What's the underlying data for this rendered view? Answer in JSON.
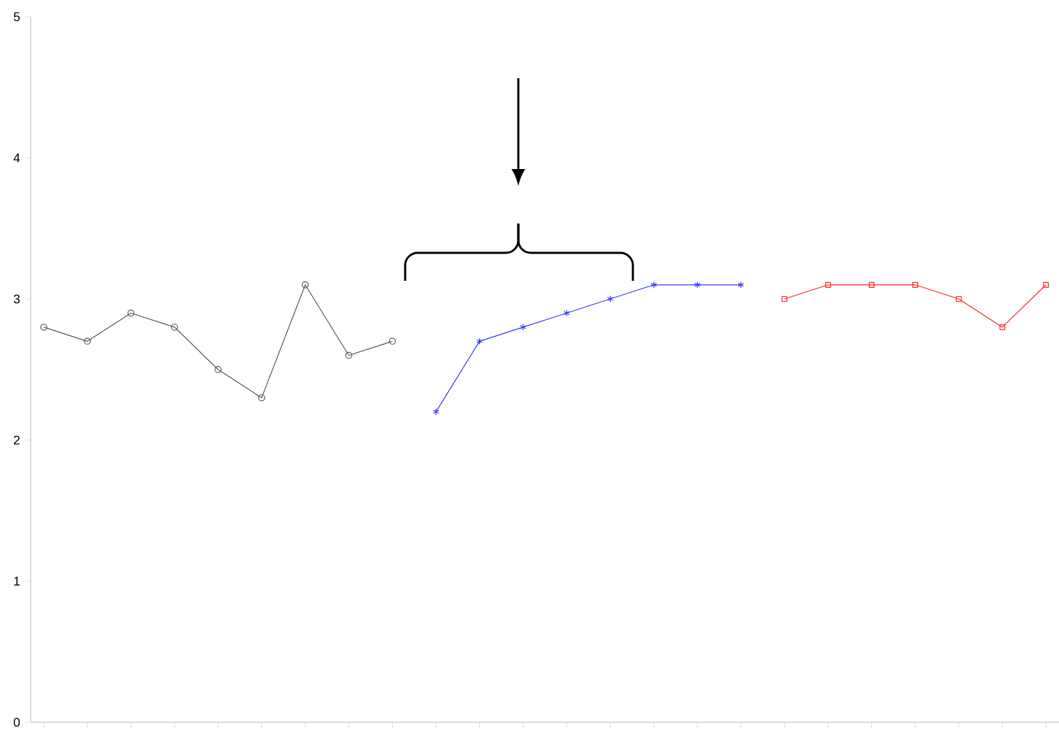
{
  "chart_data": {
    "type": "line",
    "categories": [
      null,
      null,
      null,
      null,
      null,
      null,
      null,
      null,
      null,
      null,
      null,
      null,
      null,
      null,
      null,
      null,
      null,
      null,
      null,
      null,
      null,
      null,
      null,
      null
    ],
    "series": [
      {
        "color": "#555555",
        "marker": "circle",
        "values": [
          2.8,
          2.7,
          2.9,
          2.8,
          2.5,
          2.3,
          3.1,
          2.6,
          2.7,
          null,
          null,
          null,
          null,
          null,
          null,
          null,
          null,
          null,
          null,
          null,
          null,
          null,
          null,
          null
        ]
      },
      {
        "color": "#3333ff",
        "marker": "cross",
        "values": [
          null,
          null,
          null,
          null,
          null,
          null,
          null,
          null,
          null,
          2.2,
          2.7,
          2.8,
          2.9,
          3.0,
          3.1,
          3.1,
          3.1,
          null,
          null,
          null,
          null,
          null,
          null,
          null
        ]
      },
      {
        "color": "#ff2222",
        "marker": "square",
        "values": [
          null,
          null,
          null,
          null,
          null,
          null,
          null,
          null,
          null,
          null,
          null,
          null,
          null,
          null,
          null,
          null,
          null,
          3.0,
          3.1,
          3.1,
          3.1,
          3.0,
          2.8,
          3.1
        ]
      }
    ],
    "ylim": [
      0,
      5
    ],
    "yticks": [
      0,
      1,
      2,
      3,
      4,
      5
    ],
    "tick_labels": "y",
    "grid": false
  }
}
